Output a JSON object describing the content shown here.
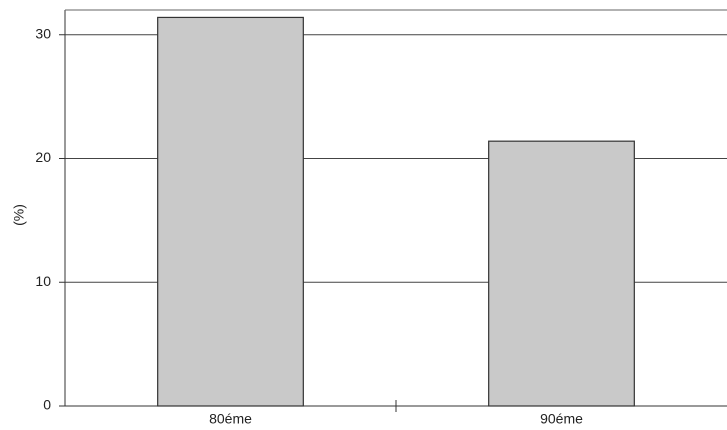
{
  "chart_data": {
    "type": "bar",
    "y_label": "(%)",
    "categories": [
      "80éme",
      "90éme"
    ],
    "values": [
      31.4,
      21.4
    ],
    "color": "#c9c9c9",
    "ylim": [
      0,
      32
    ],
    "yticks": [
      0,
      10,
      20,
      30
    ],
    "grid": true
  }
}
